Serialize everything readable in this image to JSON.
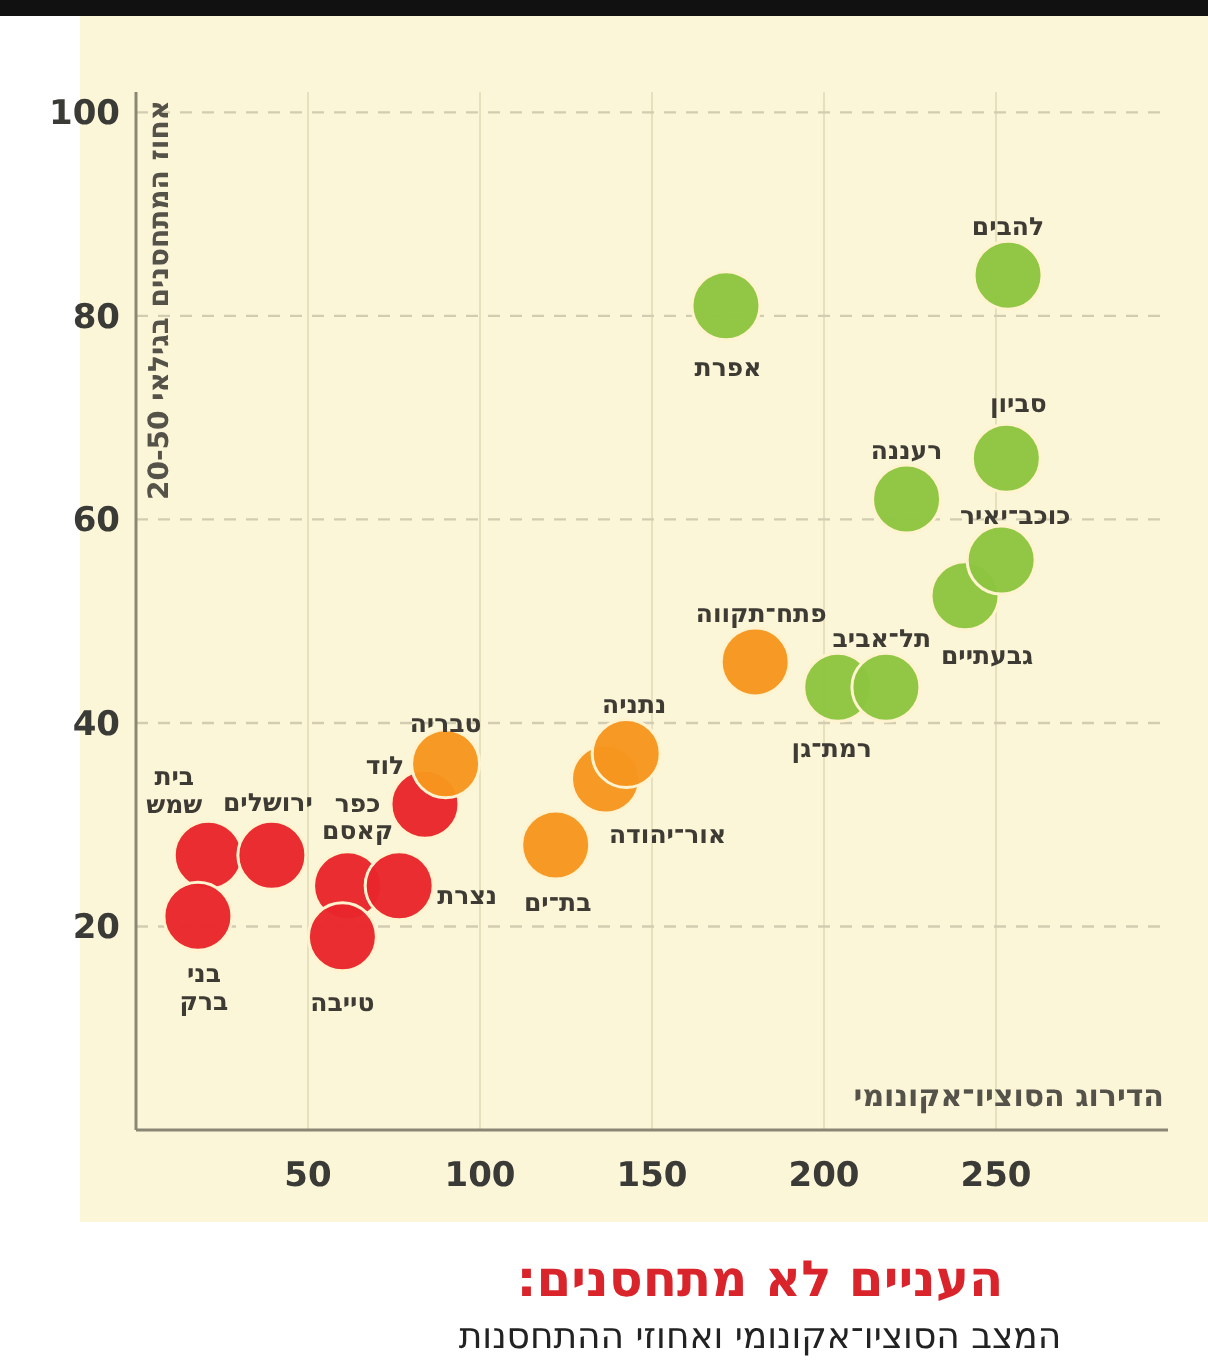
{
  "chart_data": {
    "type": "scatter",
    "title": "העניים לא מתחסנים:",
    "subtitle": "המצב הסוציו־אקונומי ואחוזי ההתחסנות",
    "xlabel": "הדירוג הסוציו־אקונומי",
    "ylabel": "אחוז המתחסנים בגילאי 20-50",
    "xlim": [
      0,
      300
    ],
    "ylim": [
      0,
      102
    ],
    "xticks": [
      50,
      100,
      150,
      200,
      250
    ],
    "yticks": [
      20,
      40,
      60,
      80,
      100
    ],
    "grid": true,
    "marker": "circle",
    "series": [
      {
        "color": "#e8262b",
        "x": [
          21,
          18,
          39.5,
          61.5,
          76.5,
          60,
          84
        ],
        "values": [
          27,
          21,
          27,
          24,
          24,
          19,
          32
        ]
      },
      {
        "color": "#f7961f",
        "x": [
          90,
          122,
          136.5,
          142.5,
          180
        ],
        "values": [
          36,
          28,
          34.5,
          37,
          46
        ]
      },
      {
        "color": "#8dc540",
        "x": [
          204,
          218,
          241,
          251.5,
          224,
          253,
          253.5,
          171.5
        ],
        "values": [
          43.5,
          43.5,
          52.5,
          56,
          62,
          66,
          84,
          81
        ]
      }
    ],
    "annotations": [
      {
        "text": "בית\nשמש",
        "x": 21,
        "y": 27
      },
      {
        "text": "בני\nברק",
        "x": 18,
        "y": 21
      },
      {
        "text": "ירושלים",
        "x": 39.5,
        "y": 27
      },
      {
        "text": "כפר\nקאסם",
        "x": 61.5,
        "y": 24
      },
      {
        "text": "נצרת",
        "x": 76.5,
        "y": 24
      },
      {
        "text": "טייבה",
        "x": 60,
        "y": 19
      },
      {
        "text": "לוד",
        "x": 84,
        "y": 32
      },
      {
        "text": "טבריה",
        "x": 90,
        "y": 36
      },
      {
        "text": "בת־ים",
        "x": 122,
        "y": 28
      },
      {
        "text": "אור־יהודה",
        "x": 136.5,
        "y": 34.5
      },
      {
        "text": "נתניה",
        "x": 142.5,
        "y": 37
      },
      {
        "text": "פתח־תקווה",
        "x": 180,
        "y": 46
      },
      {
        "text": "רמת־גן",
        "x": 204,
        "y": 43.5
      },
      {
        "text": "תל־אביב",
        "x": 218,
        "y": 43.5
      },
      {
        "text": "גבעתיים",
        "x": 241,
        "y": 52.5
      },
      {
        "text": "כוכב־יאיר",
        "x": 251.5,
        "y": 56
      },
      {
        "text": "רעננה",
        "x": 224,
        "y": 62
      },
      {
        "text": "סביון",
        "x": 253,
        "y": 66
      },
      {
        "text": "להבים",
        "x": 253.5,
        "y": 84
      },
      {
        "text": "אפרת",
        "x": 171.5,
        "y": 81
      }
    ]
  }
}
